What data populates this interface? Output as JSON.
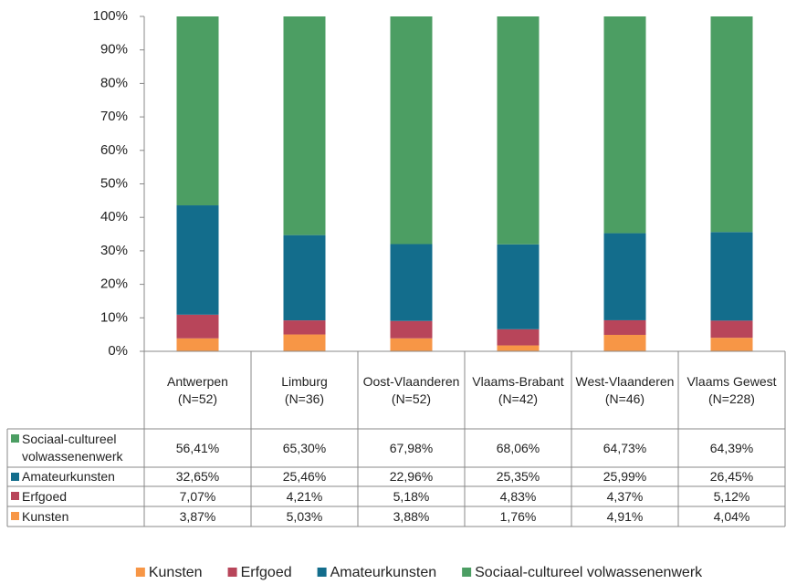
{
  "chart_data": {
    "type": "stacked_bar",
    "categories": [
      "Antwerpen\n(N=52)",
      "Limburg\n(N=36)",
      "Oost-Vlaanderen\n(N=52)",
      "Vlaams-Brabant\n(N=42)",
      "West-Vlaanderen\n(N=46)",
      "Vlaams Gewest\n(N=228)"
    ],
    "series": [
      {
        "name": "Kunsten",
        "color": "#f79646",
        "values": [
          3.87,
          5.03,
          3.88,
          1.76,
          4.91,
          4.04
        ],
        "value_labels": [
          "3,87%",
          "5,03%",
          "3,88%",
          "1,76%",
          "4,91%",
          "4,04%"
        ]
      },
      {
        "name": "Erfgoed",
        "color": "#b8455a",
        "values": [
          7.07,
          4.21,
          5.18,
          4.83,
          4.37,
          5.12
        ],
        "value_labels": [
          "7,07%",
          "4,21%",
          "5,18%",
          "4,83%",
          "4,37%",
          "5,12%"
        ]
      },
      {
        "name": "Amateurkunsten",
        "color": "#136d8c",
        "values": [
          32.65,
          25.46,
          22.96,
          25.35,
          25.99,
          26.45
        ],
        "value_labels": [
          "32,65%",
          "25,46%",
          "22,96%",
          "25,35%",
          "25,99%",
          "26,45%"
        ]
      },
      {
        "name": "Sociaal-cultureel volwassenenwerk",
        "color": "#4c9e63",
        "values": [
          56.41,
          65.3,
          67.98,
          68.06,
          64.73,
          64.39
        ],
        "value_labels": [
          "56,41%",
          "65,30%",
          "67,98%",
          "68,06%",
          "64,73%",
          "64,39%"
        ]
      }
    ],
    "ylim": [
      0,
      100
    ],
    "yticks": [
      {
        "value": 0,
        "label": "0%"
      },
      {
        "value": 10,
        "label": "10%"
      },
      {
        "value": 20,
        "label": "20%"
      },
      {
        "value": 30,
        "label": "30%"
      },
      {
        "value": 40,
        "label": "40%"
      },
      {
        "value": 50,
        "label": "50%"
      },
      {
        "value": 60,
        "label": "60%"
      },
      {
        "value": 70,
        "label": "70%"
      },
      {
        "value": 80,
        "label": "80%"
      },
      {
        "value": 90,
        "label": "90%"
      },
      {
        "value": 100,
        "label": "100%"
      }
    ],
    "legend": "bottom"
  }
}
